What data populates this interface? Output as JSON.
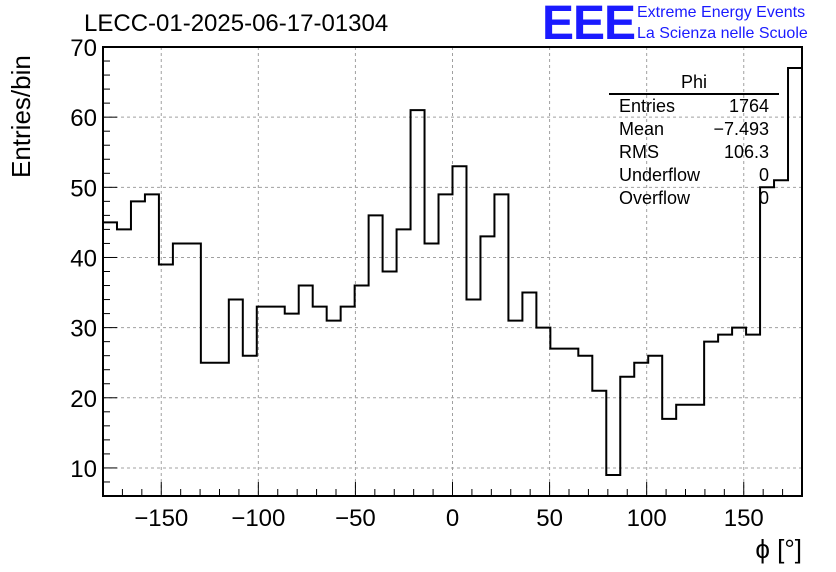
{
  "title": "LECC-01-2025-06-17-01304",
  "logo": {
    "mark": "EEE",
    "line1": "Extreme Energy Events",
    "line2": "La Scienza nelle Scuole"
  },
  "stats": {
    "name": "Phi",
    "rows": [
      {
        "label": "Entries",
        "value": "1764"
      },
      {
        "label": "Mean",
        "value": "−7.493"
      },
      {
        "label": "RMS",
        "value": "106.3"
      },
      {
        "label": "Underflow",
        "value": "0"
      },
      {
        "label": "Overflow",
        "value": "0"
      }
    ]
  },
  "chart_data": {
    "type": "histogram",
    "xlabel": "ϕ [°]",
    "ylabel": "Entries/bin",
    "xlim": [
      -180,
      180
    ],
    "ylim": [
      6,
      70
    ],
    "bin_width": 7.2,
    "bin_start": -180,
    "values": [
      45,
      44,
      48,
      49,
      39,
      42,
      42,
      25,
      25,
      34,
      26,
      33,
      33,
      32,
      36,
      33,
      31,
      33,
      36,
      46,
      38,
      44,
      61,
      42,
      49,
      53,
      34,
      43,
      49,
      31,
      35,
      30,
      27,
      27,
      26,
      21,
      9,
      23,
      25,
      26,
      17,
      19,
      19,
      28,
      29,
      30,
      29,
      50,
      51,
      67
    ],
    "xticks": [
      -150,
      -100,
      -50,
      0,
      50,
      100,
      150
    ],
    "xtick_labels": [
      "−150",
      "−100",
      "−50",
      "0",
      "50",
      "100",
      "150"
    ],
    "yticks": [
      10,
      20,
      30,
      40,
      50,
      60,
      70
    ],
    "grid": true
  }
}
